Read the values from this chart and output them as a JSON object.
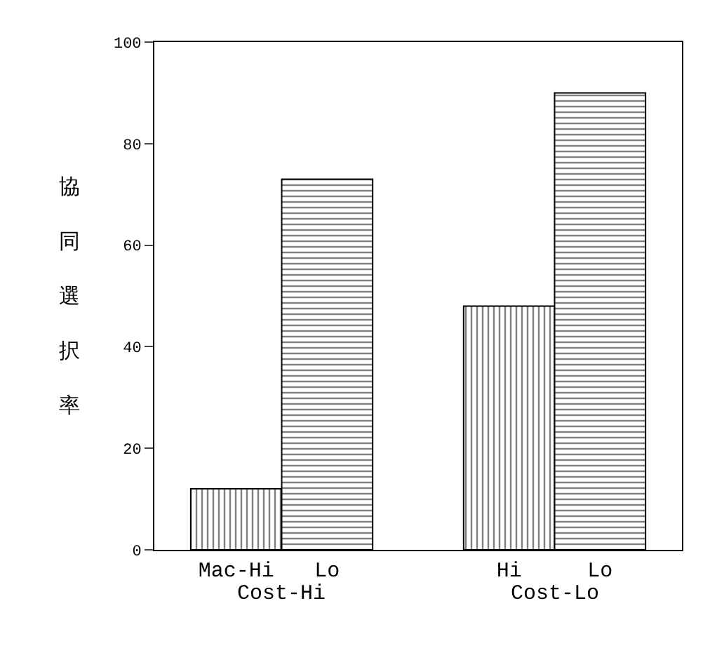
{
  "chart_data": {
    "type": "bar",
    "ylabel": "協同選択率",
    "categories": [
      "Mac-Hi",
      "Lo",
      null,
      "Hi",
      "Lo"
    ],
    "series": [
      {
        "color": "#000000",
        "values": [
          12,
          null,
          null,
          48,
          null
        ]
      },
      {
        "color": "#000000",
        "values": [
          null,
          73,
          null,
          null,
          90
        ]
      }
    ],
    "annotations": [
      "Cost-Hi",
      "Cost-Lo"
    ],
    "ylim": [
      0,
      100
    ],
    "yticks": [
      0,
      20,
      40,
      60,
      80,
      100
    ]
  }
}
